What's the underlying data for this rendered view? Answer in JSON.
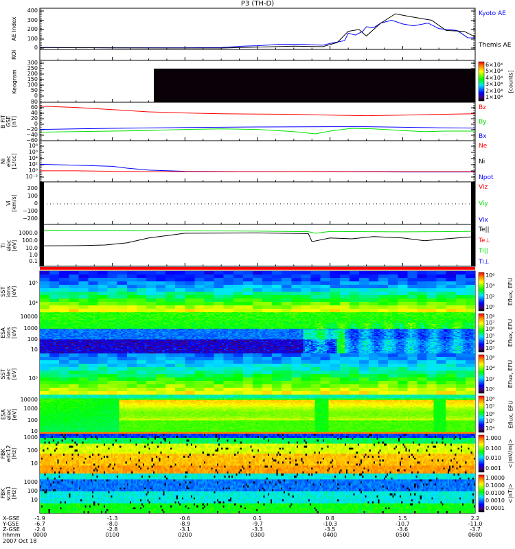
{
  "title": "P3 (TH-D)",
  "colors": {
    "red": "#ff0000",
    "green": "#00e000",
    "blue": "#0000ff",
    "black": "#000000"
  },
  "panels": {
    "ae": {
      "ylabel": [
        "AE Index"
      ],
      "ticks": [
        "400",
        "300",
        "200",
        "100",
        "0"
      ],
      "legend": [
        {
          "text": "Kyoto AE",
          "color": "#0000ff"
        },
        {
          "text": "Themis AE",
          "color": "#000000"
        }
      ]
    },
    "roi": {
      "ylabel": [
        "ROI"
      ]
    },
    "keo": {
      "ylabel": [
        "Keogram"
      ],
      "ticks": [
        "300",
        "250",
        "200",
        "150",
        "100",
        "50",
        "0"
      ],
      "cbar": [
        "6×10⁴",
        "5×10⁴",
        "4×10⁴",
        "3×10⁴",
        "2×10⁴",
        "1×10⁴"
      ],
      "cbar_unit": "[counts]"
    },
    "b": {
      "ylabel": [
        "B FIT",
        "GSE",
        "[nT]"
      ],
      "ticks": [
        "80",
        "60",
        "40",
        "20",
        "0",
        "−20",
        "−40",
        "−60"
      ],
      "legend": [
        {
          "text": "Bz",
          "color": "#ff0000"
        },
        {
          "text": "By",
          "color": "#00e000"
        },
        {
          "text": "Bx",
          "color": "#0000ff"
        }
      ]
    },
    "ni": {
      "ylabel": [
        "Ni",
        "elec",
        "[1/cc]"
      ],
      "ticks": [
        "10⁸",
        "10⁶",
        "10⁴",
        "10²",
        "10⁰",
        "10⁻²"
      ],
      "legend": [
        {
          "text": "Ne",
          "color": "#ff0000"
        },
        {
          "text": "Ni",
          "color": "#000000"
        },
        {
          "text": "Npot",
          "color": "#0000ff"
        }
      ]
    },
    "vi": {
      "ylabel": [
        "Vi",
        "[km/s]"
      ],
      "ticks": [
        "200",
        "100",
        "0",
        "−100",
        "−200"
      ],
      "legend": [
        {
          "text": "Viz",
          "color": "#ff0000"
        },
        {
          "text": "Viy",
          "color": "#00e000"
        },
        {
          "text": "Vix",
          "color": "#0000ff"
        }
      ]
    },
    "ti": {
      "ylabel": [
        "Ti",
        "elec",
        "[eV]"
      ],
      "ticks": [
        "1000.0",
        "100.0",
        "10.0",
        "1.0",
        "0.1"
      ],
      "legend": [
        {
          "text": "Te||",
          "color": "#000000"
        },
        {
          "text": "Te⊥",
          "color": "#ff0000"
        },
        {
          "text": "Ti||",
          "color": "#00e000"
        },
        {
          "text": "Ti⊥",
          "color": "#0000ff"
        }
      ]
    },
    "sst_i": {
      "ylabel": [
        "SST",
        "ions",
        "[eV]"
      ],
      "ticks": [
        "10⁵",
        "10⁴"
      ],
      "cbar": [
        "10⁶",
        "10⁴",
        "10²",
        "10⁰"
      ],
      "cbar_unit": "Eflux, EFU"
    },
    "esa_i": {
      "ylabel": [
        "ESA",
        "ions",
        "[eV]"
      ],
      "ticks": [
        "10000",
        "1000",
        "100",
        "10"
      ],
      "cbar": [
        "10⁸",
        "10⁷",
        "10⁶",
        "10⁵",
        "10⁴",
        "10³"
      ],
      "cbar_unit": "Eflux, EFU"
    },
    "sst_e": {
      "ylabel": [
        "SST",
        "elec",
        "[eV]"
      ],
      "ticks": [
        "10⁵"
      ],
      "cbar": [
        "10⁶",
        "10⁴",
        "10²",
        "10⁰"
      ],
      "cbar_unit": "Eflux, EFU"
    },
    "esa_e": {
      "ylabel": [
        "ESA",
        "elec",
        "[eV]"
      ],
      "ticks": [
        "10000",
        "1000",
        "100",
        "10"
      ],
      "cbar": [
        "10⁸",
        "10⁷",
        "10⁶",
        "10⁵",
        "10⁴"
      ],
      "cbar_unit": "Eflux, EFU"
    },
    "fbk1": {
      "ylabel": [
        "FBK",
        "edc12",
        "[Hz]"
      ],
      "ticks": [
        "1000",
        "100",
        "10"
      ],
      "cbar": [
        "1.000",
        "0.100",
        "0.010",
        "0.001"
      ],
      "cbar_unit": "<|mV/m|>"
    },
    "fbk2": {
      "ylabel": [
        "FBK",
        "scm1",
        "[Hz]"
      ],
      "ticks": [
        "1000",
        "100",
        "10"
      ],
      "cbar": [
        "1.0000",
        "0.1000",
        "0.0100",
        "0.0010",
        "0.0001"
      ],
      "cbar_unit": "<|nT|>"
    }
  },
  "xaxis": {
    "row_labels": [
      "X-GSE",
      "Y-GSE",
      "Z-GSE",
      "hhmm"
    ],
    "date": "2007 Oct 18",
    "columns": [
      [
        "-1.9",
        "-6.7",
        "-2.4",
        "0000"
      ],
      [
        "-1.3",
        "-8.0",
        "-2.8",
        "0100"
      ],
      [
        "-0.6",
        "-8.9",
        "-3.1",
        "0200"
      ],
      [
        "0.1",
        "-9.7",
        "-3.3",
        "0300"
      ],
      [
        "0.8",
        "-10.3",
        "-3.5",
        "0400"
      ],
      [
        "1.5",
        "-10.7",
        "-3.6",
        "0500"
      ],
      [
        "2.2",
        "-11.0",
        "-3.7",
        "0600"
      ]
    ]
  },
  "chart_data": {
    "type": "line",
    "title": "P3 (TH-D)",
    "xlabel": "hhmm (hours UT, 2007 Oct 18)",
    "xlim": [
      0,
      6
    ],
    "series": [
      {
        "panel": "ae",
        "name": "Kyoto AE",
        "color": "#0000ff",
        "ylim": [
          -15,
          430
        ],
        "x": [
          0,
          1,
          2,
          2.5,
          2.8,
          3.0,
          3.3,
          3.6,
          3.9,
          4.0,
          4.2,
          4.25,
          4.35,
          4.45,
          4.5,
          4.6,
          4.7,
          4.85,
          5.0,
          5.15,
          5.35,
          5.5,
          5.75,
          5.9,
          6.0
        ],
        "y": [
          5,
          3,
          3,
          5,
          20,
          25,
          40,
          40,
          30,
          50,
          80,
          160,
          140,
          180,
          230,
          220,
          270,
          300,
          260,
          240,
          270,
          210,
          190,
          110,
          110
        ]
      },
      {
        "panel": "ae",
        "name": "Themis AE",
        "color": "#000000",
        "ylim": [
          -15,
          430
        ],
        "x": [
          0,
          1,
          2,
          2.5,
          3.0,
          3.5,
          3.9,
          4.1,
          4.25,
          4.4,
          4.5,
          4.7,
          4.9,
          5.1,
          5.4,
          5.6,
          5.85,
          6.0
        ],
        "y": [
          5,
          2,
          0,
          0,
          10,
          20,
          15,
          60,
          180,
          200,
          130,
          270,
          370,
          340,
          300,
          190,
          180,
          120
        ]
      },
      {
        "panel": "b",
        "name": "Bz",
        "color": "#ff0000",
        "ylim": [
          -63,
          77
        ],
        "x": [
          0,
          0.5,
          1,
          1.5,
          2,
          2.5,
          3,
          3.5,
          4,
          4.5,
          5,
          5.5,
          6
        ],
        "y": [
          63,
          58,
          50,
          42,
          38,
          35,
          34,
          33,
          30,
          28,
          30,
          33,
          35
        ]
      },
      {
        "panel": "b",
        "name": "By",
        "color": "#00e000",
        "ylim": [
          -63,
          77
        ],
        "x": [
          0,
          0.5,
          1,
          1.5,
          2,
          2.5,
          3,
          3.5,
          3.8,
          4,
          4.3,
          4.6,
          5,
          5.3,
          5.6,
          6
        ],
        "y": [
          -32,
          -30,
          -28,
          -26,
          -22,
          -20,
          -22,
          -30,
          -38,
          -28,
          -18,
          -20,
          -26,
          -30,
          -28,
          -28
        ]
      },
      {
        "panel": "b",
        "name": "Bx",
        "color": "#0000ff",
        "ylim": [
          -63,
          77
        ],
        "x": [
          0,
          0.5,
          1,
          2,
          3,
          4,
          4.5,
          5,
          5.5,
          6
        ],
        "y": [
          -22,
          -20,
          -18,
          -15,
          -13,
          -12,
          -12,
          -14,
          -16,
          -17
        ]
      },
      {
        "panel": "ni",
        "name": "Npot",
        "color": "#0000ff",
        "ylim": [
          0.0025,
          160000000.0
        ],
        "log": true,
        "x": [
          0,
          0.5,
          1,
          1.2,
          1.5,
          2,
          3,
          4,
          5,
          6
        ],
        "y": [
          100,
          60,
          30,
          10,
          3,
          1.5,
          1.2,
          1.2,
          1,
          1
        ]
      },
      {
        "panel": "ni",
        "name": "Ne",
        "color": "#ff0000",
        "ylim": [
          0.0025,
          160000000.0
        ],
        "log": true,
        "x": [
          0,
          0.5,
          1,
          1.5,
          2,
          3,
          4,
          5,
          6
        ],
        "y": [
          2,
          2,
          1.5,
          1.2,
          1.2,
          1.2,
          1.3,
          1.2,
          1.2
        ]
      },
      {
        "panel": "ti",
        "name": "Ti||",
        "color": "#00e000",
        "ylim": [
          0.02,
          16000
        ],
        "log": true,
        "x": [
          0,
          0.5,
          1,
          2,
          3,
          3.7,
          3.8,
          4,
          4.5,
          5,
          5.5,
          6
        ],
        "y": [
          2500,
          2200,
          2300,
          2000,
          1800,
          1500,
          900,
          1600,
          1500,
          1400,
          1500,
          1700
        ]
      },
      {
        "panel": "ti",
        "name": "Te||",
        "color": "#000000",
        "ylim": [
          0.02,
          16000
        ],
        "log": true,
        "x": [
          0,
          0.5,
          0.9,
          1.2,
          1.5,
          1.8,
          2,
          3,
          3.7,
          3.75,
          4,
          4.3,
          4.6,
          5,
          5.3,
          5.6,
          6
        ],
        "y": [
          15,
          16,
          20,
          40,
          200,
          500,
          900,
          1000,
          800,
          60,
          200,
          150,
          300,
          200,
          80,
          150,
          300
        ]
      }
    ],
    "vi_zero_line": 0
  }
}
